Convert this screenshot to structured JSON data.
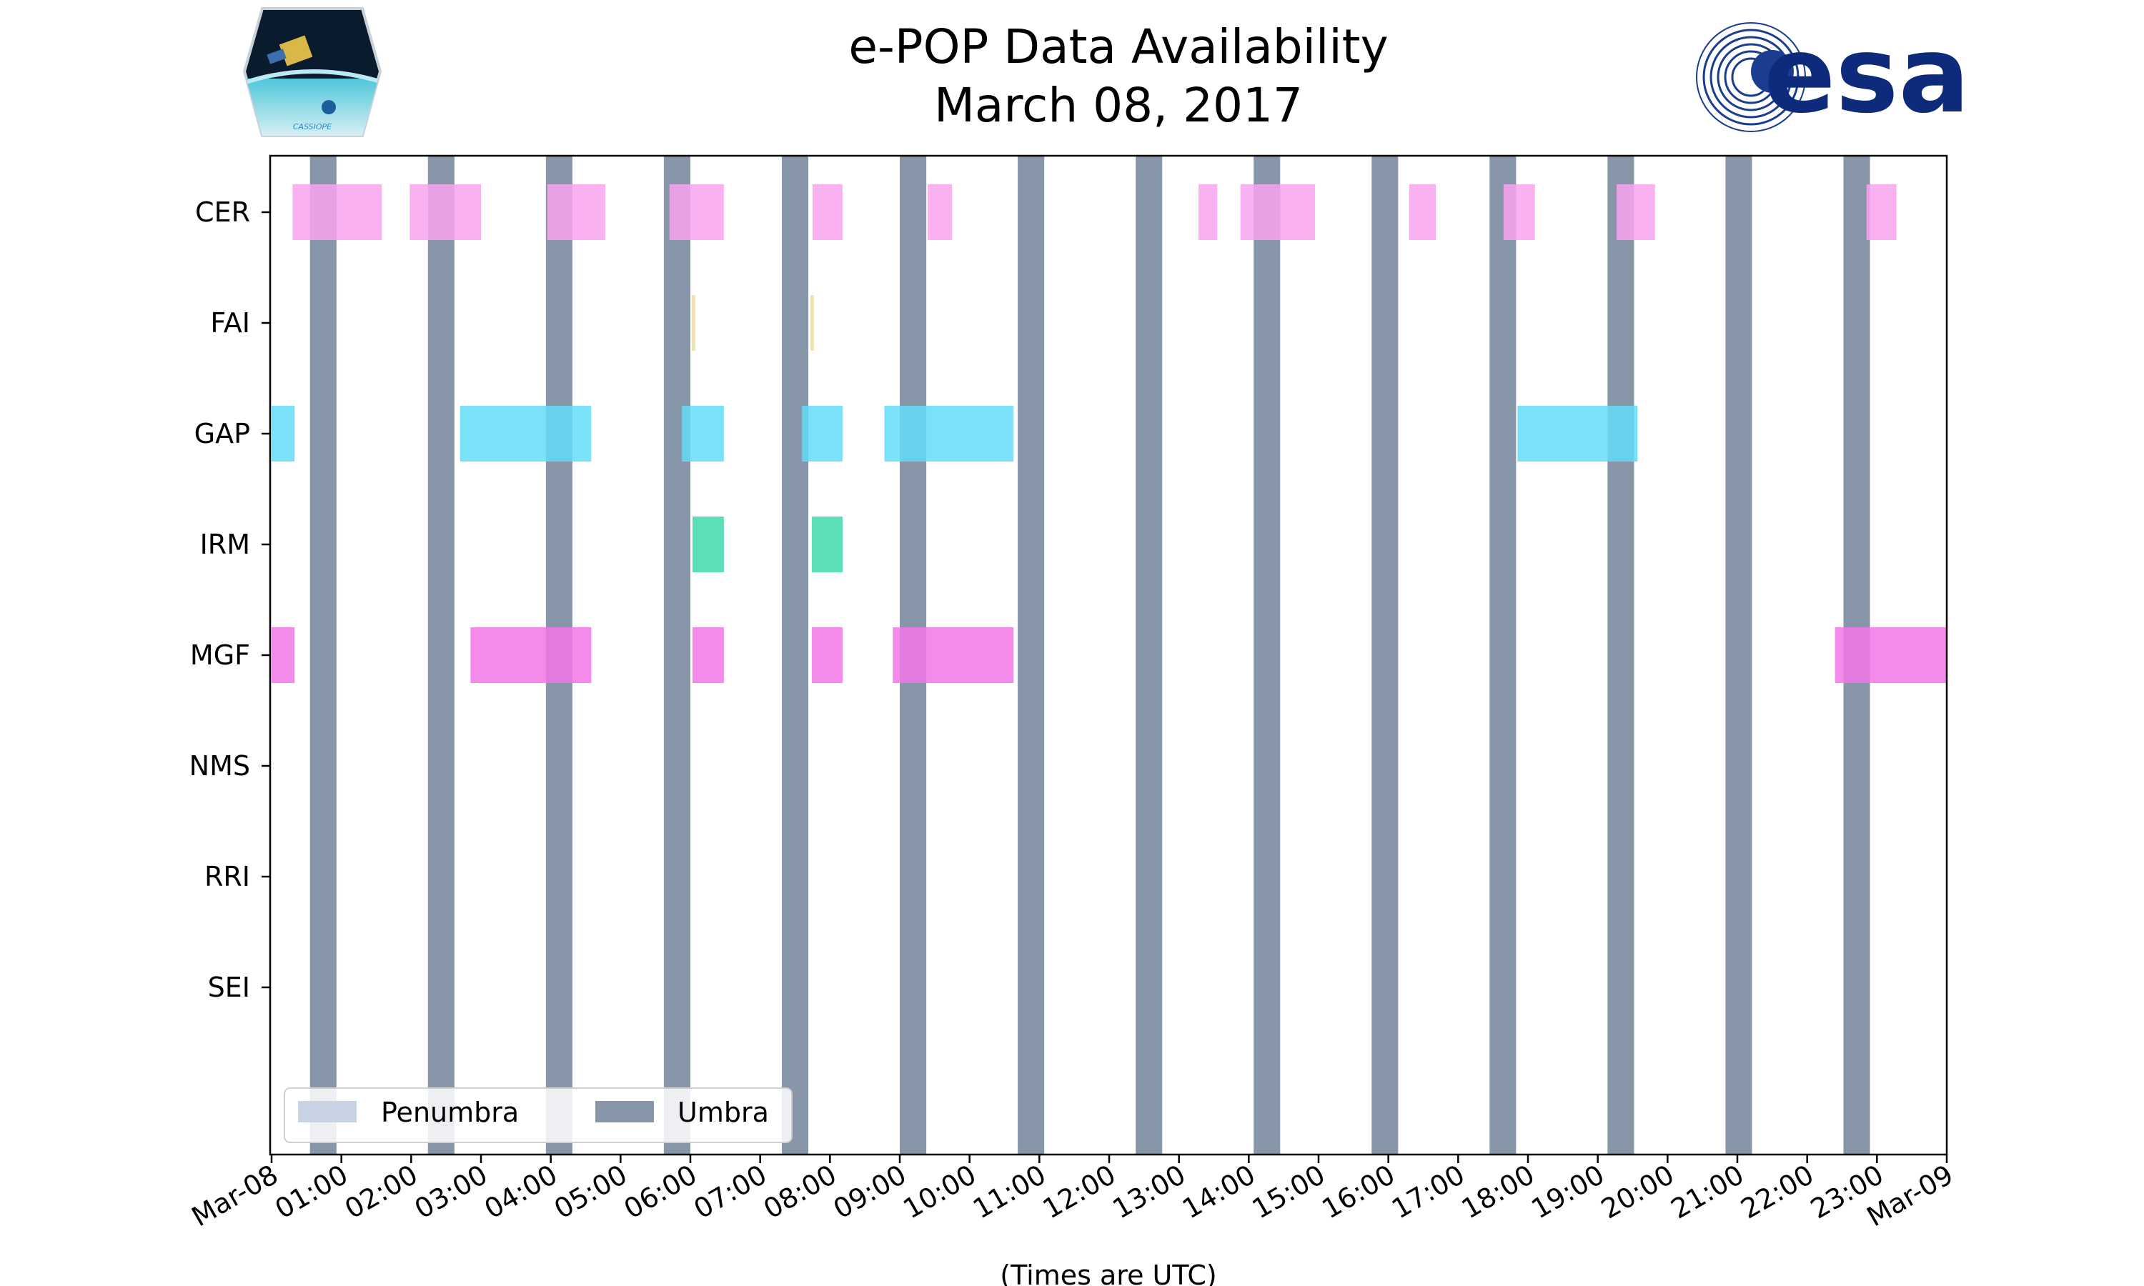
{
  "chart_data": {
    "type": "timeline",
    "title": "e-POP Data Availability",
    "subtitle": "March 08, 2017",
    "xlabel": "(Times are UTC)",
    "xlim_hours": [
      0,
      24
    ],
    "xticks": [
      "Mar-08",
      "01:00",
      "02:00",
      "03:00",
      "04:00",
      "05:00",
      "06:00",
      "07:00",
      "08:00",
      "09:00",
      "10:00",
      "11:00",
      "12:00",
      "13:00",
      "14:00",
      "15:00",
      "16:00",
      "17:00",
      "18:00",
      "19:00",
      "20:00",
      "21:00",
      "22:00",
      "23:00",
      "Mar-09"
    ],
    "instruments": [
      "CER",
      "FAI",
      "GAP",
      "IRM",
      "MGF",
      "NMS",
      "RRI",
      "SEI"
    ],
    "colors": {
      "CER": "#f9a3f0",
      "FAI": "#e9dfa4",
      "GAP": "#63dcf8",
      "IRM": "#3fd8ad",
      "MGF": "#f277e6",
      "umbra": "#8796a8",
      "penumbra": "#c8d4e4"
    },
    "umbra": [
      [
        0.55,
        0.93
      ],
      [
        2.24,
        2.62
      ],
      [
        3.93,
        4.31
      ],
      [
        5.62,
        6.0
      ],
      [
        7.31,
        7.69
      ],
      [
        9.0,
        9.38
      ],
      [
        10.69,
        11.07
      ],
      [
        12.38,
        12.76
      ],
      [
        14.07,
        14.45
      ],
      [
        15.76,
        16.14
      ],
      [
        17.45,
        17.83
      ],
      [
        19.14,
        19.52
      ],
      [
        20.83,
        21.21
      ],
      [
        22.52,
        22.9
      ]
    ],
    "availability": {
      "CER": [
        [
          0.3,
          1.58
        ],
        [
          1.98,
          3.0
        ],
        [
          3.95,
          4.78
        ],
        [
          5.7,
          6.48
        ],
        [
          7.75,
          8.18
        ],
        [
          9.4,
          9.75
        ],
        [
          13.28,
          13.55
        ],
        [
          13.88,
          14.95
        ],
        [
          16.3,
          16.68
        ],
        [
          17.65,
          18.1
        ],
        [
          19.27,
          19.82
        ],
        [
          22.85,
          23.28
        ]
      ],
      "FAI": [
        [
          6.02,
          6.07
        ],
        [
          7.72,
          7.77
        ]
      ],
      "GAP": [
        [
          0.0,
          0.33
        ],
        [
          2.7,
          4.58
        ],
        [
          5.88,
          6.48
        ],
        [
          7.6,
          8.18
        ],
        [
          8.78,
          10.63
        ],
        [
          17.85,
          19.57
        ]
      ],
      "IRM": [
        [
          6.03,
          6.48
        ],
        [
          7.74,
          8.18
        ]
      ],
      "MGF": [
        [
          0.0,
          0.33
        ],
        [
          2.85,
          4.58
        ],
        [
          6.03,
          6.48
        ],
        [
          7.74,
          8.18
        ],
        [
          8.9,
          10.63
        ],
        [
          22.4,
          24.0
        ]
      ],
      "NMS": [],
      "RRI": [],
      "SEI": []
    },
    "legend": {
      "position": "lower-left",
      "entries": [
        "Penumbra",
        "Umbra"
      ]
    }
  },
  "logos": {
    "left": {
      "name": "cassiope-mission-logo",
      "text": "CASSIOPE"
    },
    "right": {
      "name": "esa-logo",
      "text": "esa"
    }
  }
}
